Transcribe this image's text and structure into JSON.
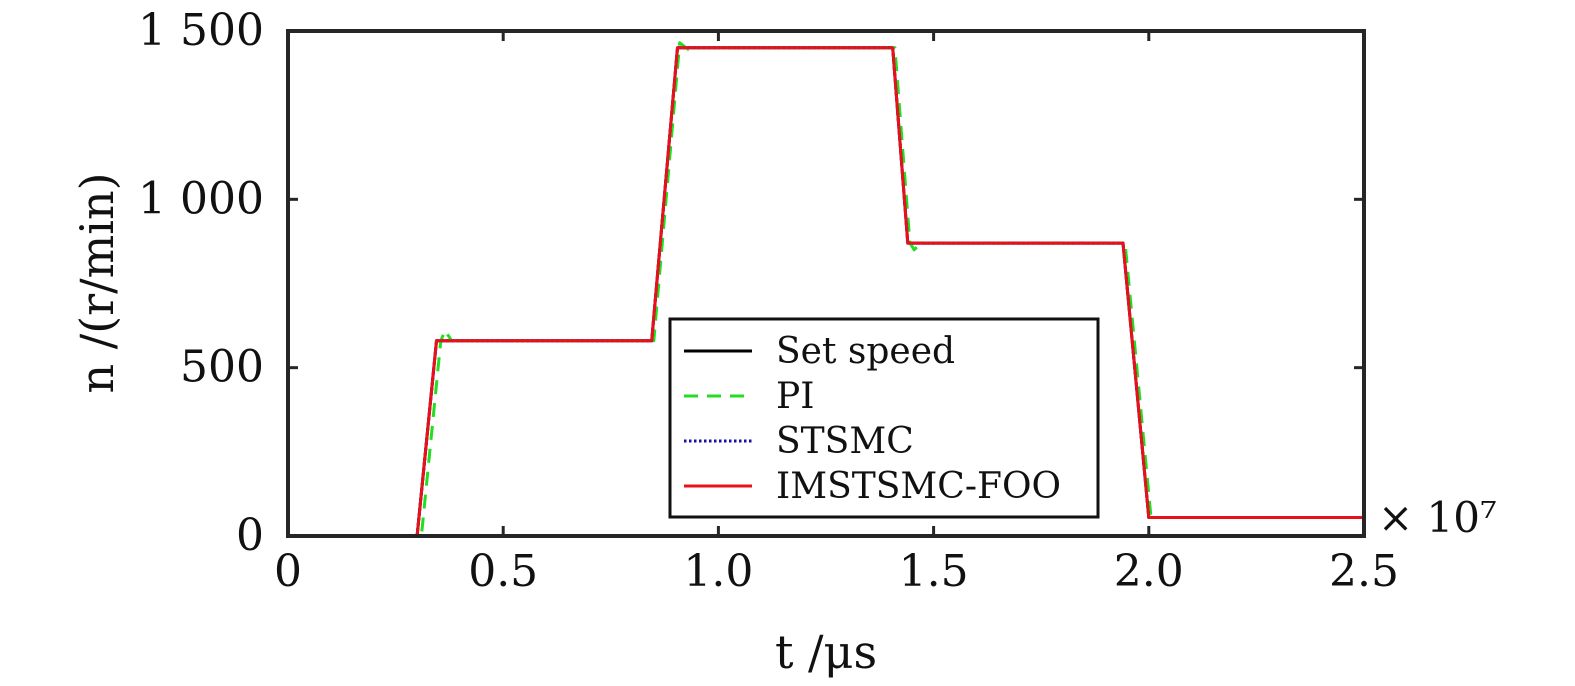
{
  "chart_data": {
    "type": "line",
    "xlabel": "t /μs",
    "ylabel": "n /(r/min)",
    "x_multiplier": "× 10⁷",
    "xlim": [
      0,
      2.5
    ],
    "ylim": [
      0,
      1500
    ],
    "xticks": [
      0,
      0.5,
      1.0,
      1.5,
      2.0,
      2.5
    ],
    "xtick_labels": [
      "0",
      "0.5",
      "1.0",
      "1.5",
      "2.0",
      "2.5"
    ],
    "yticks": [
      0,
      500,
      1000,
      1500
    ],
    "ytick_labels": [
      "0",
      "500",
      "1 000",
      "1 500"
    ],
    "grid": false,
    "legend_position": "center-bottom",
    "series": [
      {
        "name": "Set speed",
        "color": "#000000",
        "style": "solid",
        "x": [
          0,
          0.3,
          0.345,
          0.845,
          0.905,
          1.405,
          1.44,
          1.94,
          2.0,
          2.5
        ],
        "y": [
          0,
          0,
          580,
          580,
          1450,
          1450,
          870,
          870,
          55,
          55
        ]
      },
      {
        "name": "PI",
        "color": "#22dd22",
        "style": "dashed",
        "x": [
          0,
          0.31,
          0.355,
          0.365,
          0.38,
          0.85,
          0.91,
          0.93,
          0.95,
          1.41,
          1.445,
          1.455,
          1.47,
          1.945,
          2.005,
          2.02,
          2.5
        ],
        "y": [
          0,
          0,
          580,
          610,
          580,
          580,
          1465,
          1445,
          1450,
          1450,
          870,
          850,
          870,
          870,
          55,
          55,
          55
        ]
      },
      {
        "name": "STSMC",
        "color": "#1010aa",
        "style": "dotted",
        "x": [
          0,
          0.3,
          0.345,
          0.845,
          0.905,
          1.405,
          1.44,
          1.94,
          2.0,
          2.5
        ],
        "y": [
          0,
          0,
          580,
          580,
          1450,
          1450,
          870,
          870,
          55,
          55
        ]
      },
      {
        "name": "IMSTSMC-FOO",
        "color": "#e8101a",
        "style": "solid",
        "x": [
          0,
          0.3,
          0.345,
          0.845,
          0.905,
          1.405,
          1.44,
          1.94,
          2.0,
          2.5
        ],
        "y": [
          0,
          0,
          580,
          580,
          1450,
          1450,
          870,
          870,
          55,
          55
        ]
      }
    ]
  }
}
